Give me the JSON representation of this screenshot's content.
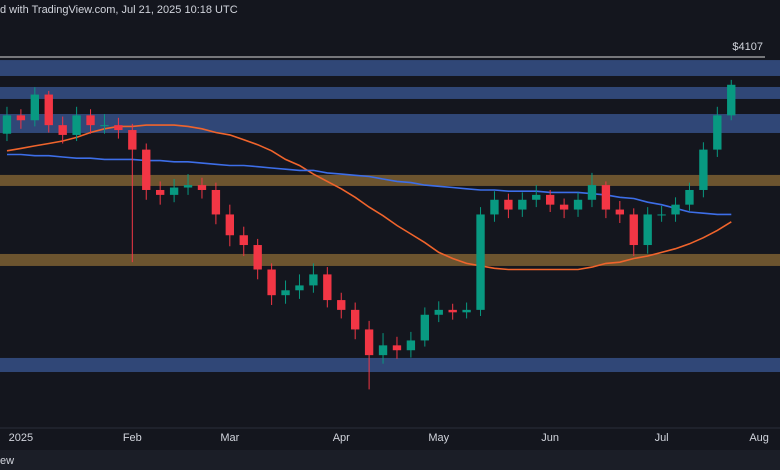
{
  "header": "d with TradingView.com, Jul 21, 2025 10:18 UTC",
  "footer": "ew",
  "chart_data": {
    "type": "candlestick",
    "categories": [
      null,
      "2025",
      null,
      null,
      null,
      null,
      null,
      null,
      null,
      "Feb",
      null,
      null,
      null,
      null,
      null,
      null,
      "Mar",
      null,
      null,
      null,
      null,
      null,
      null,
      null,
      "Apr",
      null,
      null,
      null,
      null,
      null,
      null,
      "May",
      null,
      null,
      null,
      null,
      null,
      null,
      null,
      "Jun",
      null,
      null,
      null,
      null,
      null,
      null,
      null,
      "Jul",
      null,
      null,
      null,
      null,
      null,
      null,
      "Aug",
      null
    ],
    "open": [
      3480,
      3630,
      3590,
      3800,
      3550,
      3470,
      3630,
      3550,
      3550,
      3510,
      3350,
      3020,
      2980,
      3040,
      3060,
      3020,
      2820,
      2650,
      2570,
      2370,
      2160,
      2200,
      2240,
      2330,
      2120,
      2040,
      1880,
      1670,
      1750,
      1710,
      1790,
      2000,
      2040,
      2020,
      2040,
      2820,
      2940,
      2860,
      2940,
      2980,
      2900,
      2860,
      2940,
      3060,
      2860,
      2820,
      2570,
      2820,
      2820,
      2900,
      3020,
      3350,
      3630,
      null,
      null,
      null
    ],
    "high": [
      3700,
      3680,
      3860,
      3830,
      3620,
      3700,
      3680,
      3640,
      3610,
      3560,
      3400,
      3090,
      3110,
      3150,
      3120,
      3080,
      2900,
      2720,
      2620,
      2420,
      2280,
      2330,
      2420,
      2390,
      2180,
      2100,
      1950,
      1850,
      1820,
      1860,
      2060,
      2110,
      2090,
      2100,
      2880,
      3010,
      2990,
      3000,
      3060,
      3020,
      2950,
      3000,
      3160,
      3090,
      2930,
      2870,
      2880,
      2890,
      2960,
      3080,
      3410,
      3700,
      3920,
      null,
      null,
      null
    ],
    "low": [
      3420,
      3520,
      3540,
      3490,
      3400,
      3420,
      3480,
      3480,
      3440,
      2430,
      2940,
      2900,
      2920,
      2980,
      2950,
      2740,
      2560,
      2480,
      2290,
      2080,
      2090,
      2130,
      2180,
      2060,
      1970,
      1800,
      1390,
      1600,
      1640,
      1650,
      1740,
      1940,
      1960,
      1970,
      1990,
      2760,
      2790,
      2800,
      2880,
      2840,
      2790,
      2800,
      2880,
      2790,
      2750,
      2480,
      2500,
      2760,
      2760,
      2850,
      2960,
      3290,
      3590,
      null,
      null,
      null
    ],
    "close": [
      3630,
      3590,
      3800,
      3550,
      3470,
      3630,
      3550,
      3550,
      3510,
      3350,
      3020,
      2980,
      3040,
      3060,
      3020,
      2820,
      2650,
      2570,
      2370,
      2160,
      2200,
      2240,
      2330,
      2120,
      2040,
      1880,
      1670,
      1750,
      1710,
      1790,
      2000,
      2040,
      2020,
      2040,
      2820,
      2940,
      2860,
      2940,
      2980,
      2900,
      2860,
      2940,
      3060,
      2860,
      2820,
      2570,
      2820,
      2820,
      2900,
      3020,
      3350,
      3630,
      3880,
      null,
      null,
      null
    ],
    "up_color": "#089981",
    "down_color": "#f23645",
    "ylim": [
      1058,
      4573
    ],
    "moving_averages": [
      {
        "color": "#f0642c",
        "values": [
          3340,
          3360,
          3380,
          3400,
          3420,
          3450,
          3490,
          3520,
          3540,
          3540,
          3550,
          3550,
          3550,
          3540,
          3520,
          3490,
          3470,
          3430,
          3390,
          3340,
          3270,
          3220,
          3150,
          3090,
          3030,
          2960,
          2880,
          2810,
          2730,
          2660,
          2590,
          2510,
          2460,
          2420,
          2400,
          2380,
          2370,
          2370,
          2370,
          2370,
          2370,
          2370,
          2390,
          2420,
          2430,
          2460,
          2480,
          2510,
          2540,
          2580,
          2630,
          2690,
          2760,
          null,
          null,
          null
        ]
      },
      {
        "color": "#3d6ee8",
        "values": [
          3310,
          3310,
          3300,
          3300,
          3290,
          3280,
          3280,
          3270,
          3270,
          3270,
          3260,
          3260,
          3250,
          3250,
          3240,
          3230,
          3220,
          3220,
          3210,
          3200,
          3190,
          3180,
          3180,
          3160,
          3150,
          3140,
          3130,
          3110,
          3090,
          3080,
          3060,
          3050,
          3040,
          3030,
          3020,
          3020,
          3010,
          3010,
          3010,
          3000,
          3000,
          3000,
          2990,
          2980,
          2960,
          2950,
          2920,
          2900,
          2870,
          2840,
          2830,
          2820,
          2820,
          null,
          null,
          null
        ]
      }
    ],
    "zones": [
      {
        "color": "#3a5896",
        "range": [
          3952,
          4082
        ]
      },
      {
        "color": "#3a5896",
        "range": [
          3764,
          3862
        ]
      },
      {
        "color": "#3a5896",
        "range": [
          3486,
          3641
        ]
      },
      {
        "color": "#8a6a35",
        "range": [
          3053,
          3143
        ]
      },
      {
        "color": "#8a6a35",
        "range": [
          2399,
          2497
        ]
      },
      {
        "color": "#3a5896",
        "range": [
          1532,
          1647
        ]
      }
    ],
    "level": {
      "value": 4107,
      "label": "$4107",
      "color": "#d8d8d8"
    }
  }
}
